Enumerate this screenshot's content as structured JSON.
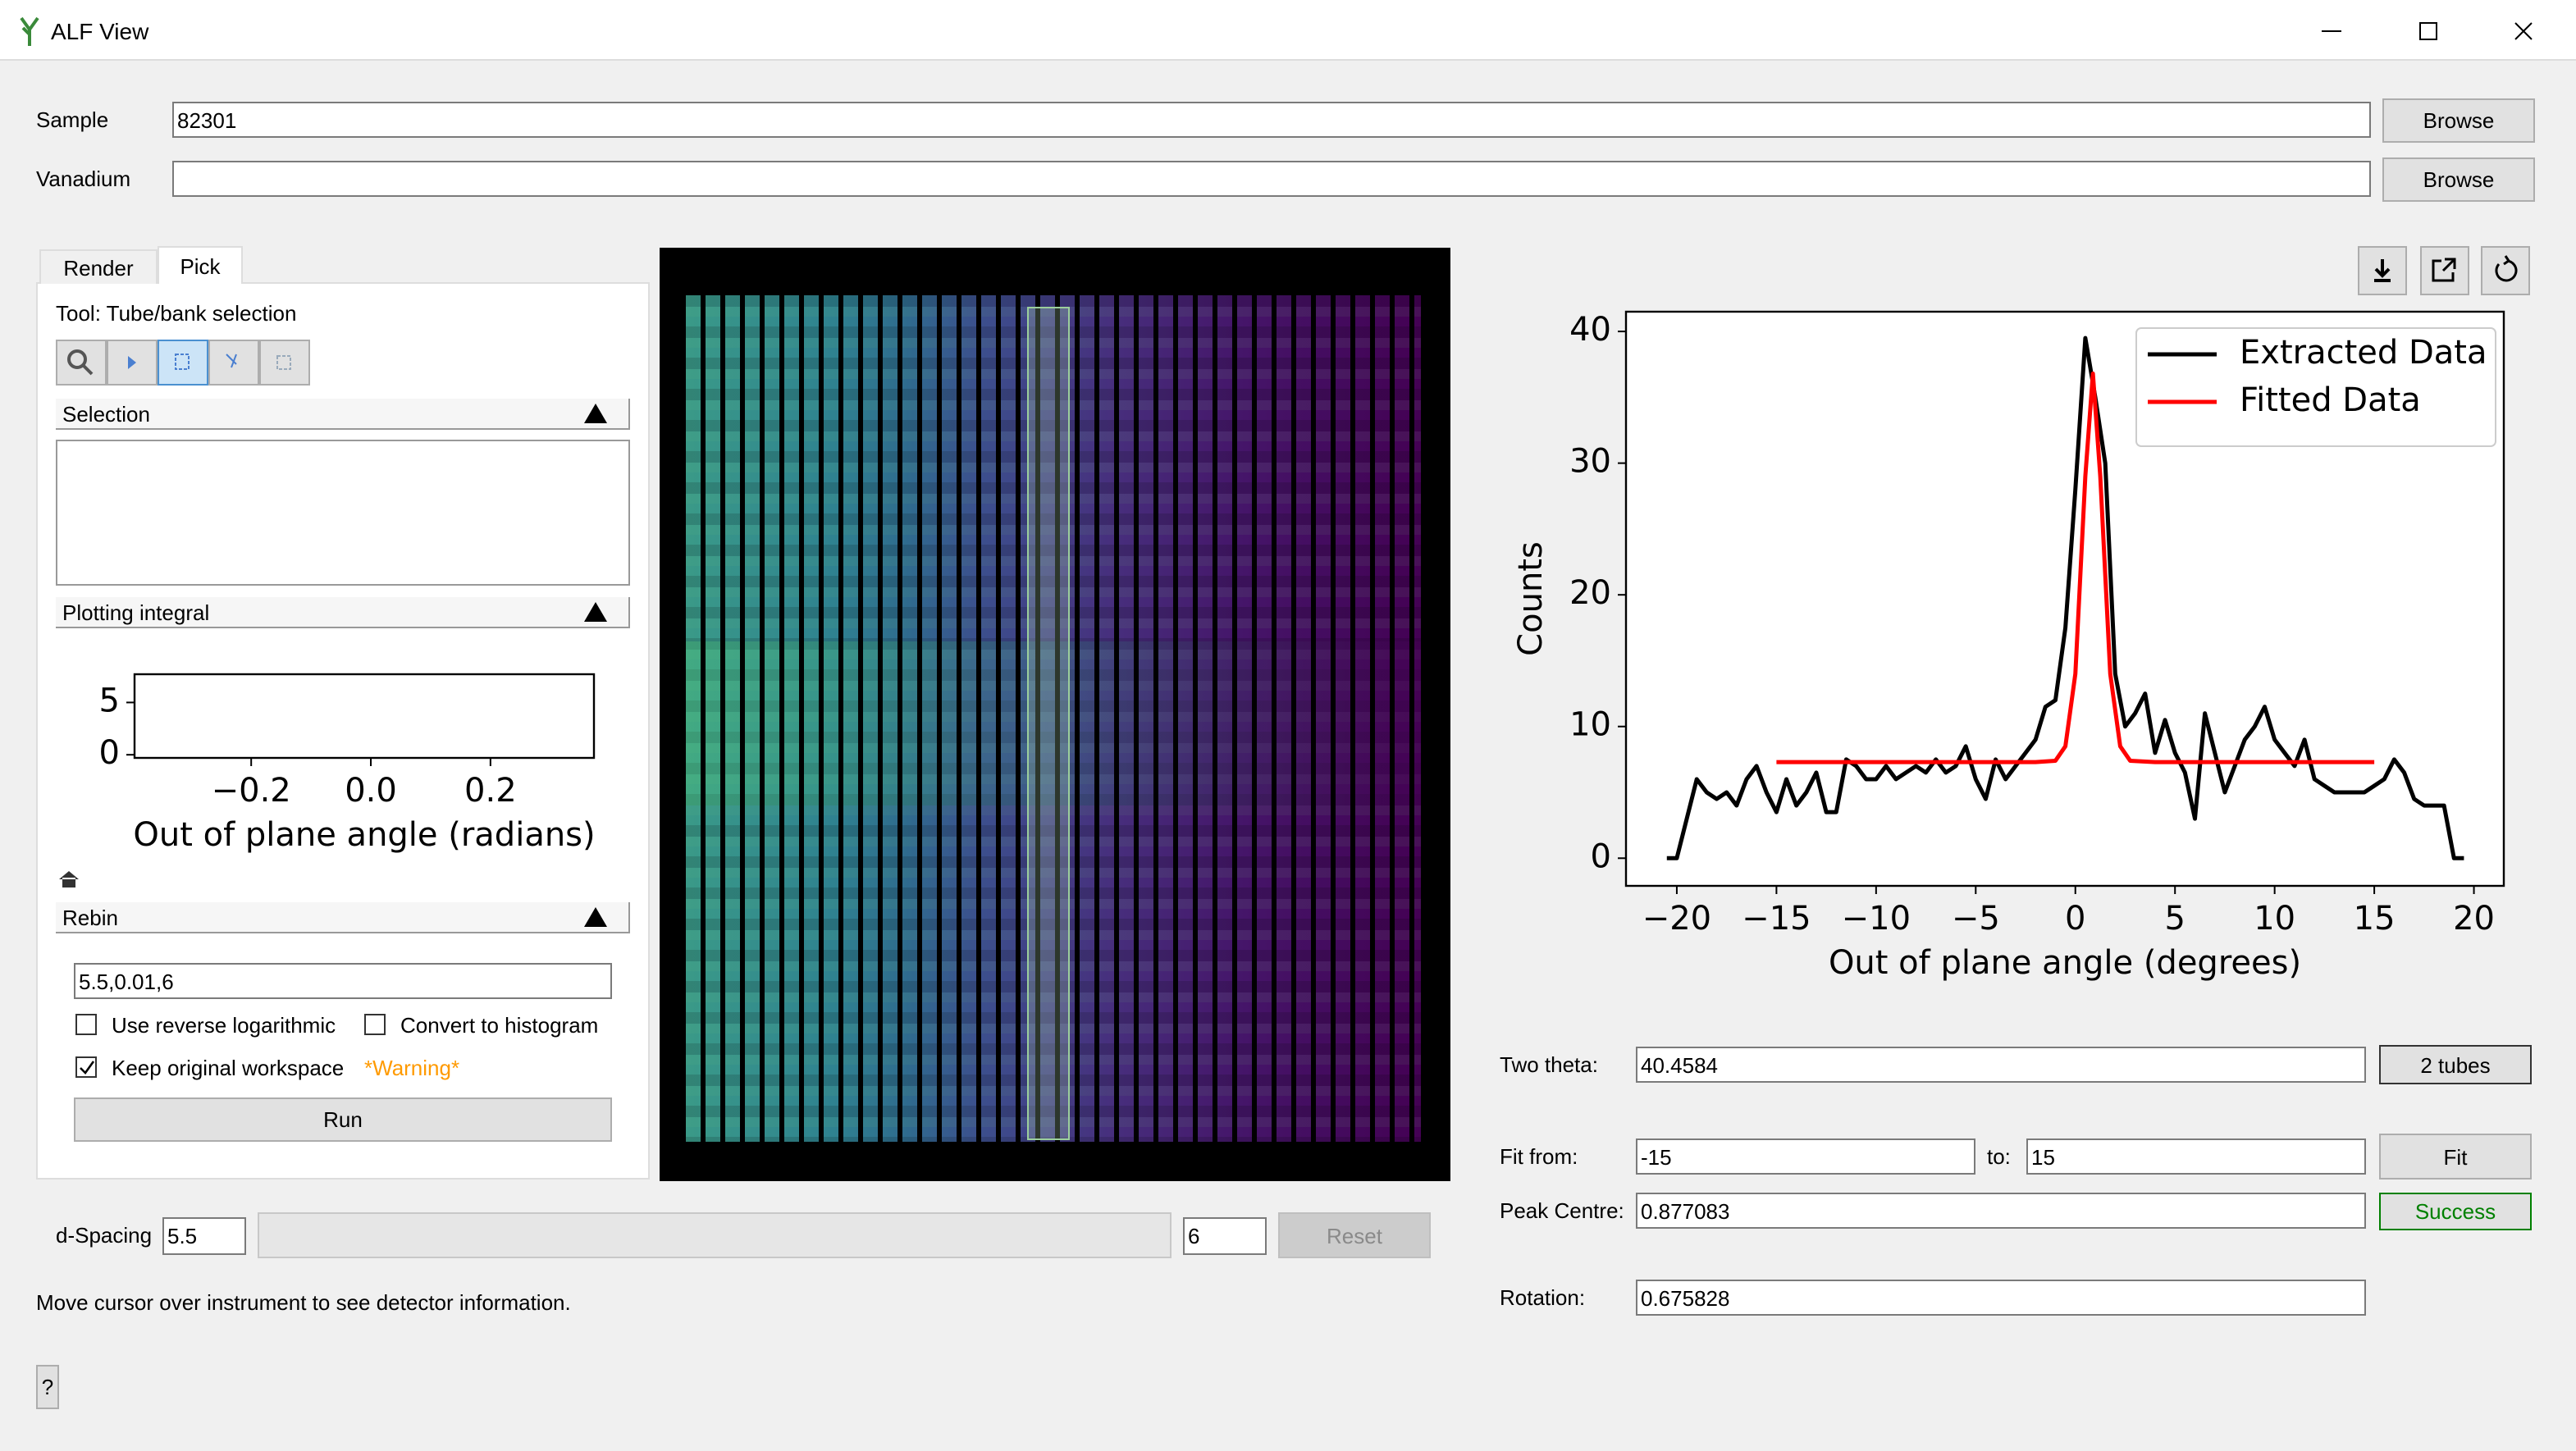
{
  "window": {
    "title": "ALF View"
  },
  "sample": {
    "label": "Sample",
    "value": "82301",
    "button": "Browse"
  },
  "vanadium": {
    "label": "Vanadium",
    "button": "Browse"
  },
  "tabs": [
    "Render",
    "Pick"
  ],
  "pick": {
    "tool": "Tool: Tube/bank selection",
    "sections": [
      "Selection",
      "Plotting integral",
      "Rebin"
    ]
  },
  "rebin": {
    "params": "5.5,0.01,6",
    "reverse_log": "Use reverse logarithmic",
    "convert": "Convert to histogram",
    "keep": "Keep original workspace",
    "warning": "*Warning*",
    "run": "Run"
  },
  "dspacing": {
    "label": "d-Spacing",
    "min": "5.5",
    "max": "6",
    "reset": "Reset"
  },
  "status": "Move cursor over instrument to see detector information.",
  "help": "?",
  "fit": {
    "two_theta_label": "Two theta:",
    "two_theta": "40.4584",
    "tubes": "2 tubes",
    "fit_from_label": "Fit from:",
    "fit_from": "-15",
    "to_label": "to:",
    "to": "15",
    "fit_button": "Fit",
    "peak_centre_label": "Peak Centre:",
    "peak_centre": "0.877083",
    "status": "Success",
    "rotation_label": "Rotation:",
    "rotation": "0.675828"
  },
  "chart_data": [
    {
      "type": "line",
      "xlabel": "Out of plane angle (degrees)",
      "ylabel": "Counts",
      "xlim": [
        -22.55,
        21.5
      ],
      "ylim": [
        -2.1,
        41.5
      ],
      "xticks": [
        {
          "value": -20,
          "label": "−20"
        },
        {
          "value": -15,
          "label": "−15"
        },
        {
          "value": -10,
          "label": "−10"
        },
        {
          "value": -5,
          "label": "−5"
        },
        0,
        5,
        10,
        15,
        20
      ],
      "yticks": [
        0,
        10,
        20,
        30,
        40
      ],
      "legend": "upper right",
      "series": [
        {
          "name": "Extracted Data",
          "color": "#000000",
          "x": [
            -20.5,
            -20,
            -19.5,
            -19,
            -18.5,
            -18,
            -17.5,
            -17,
            -16.5,
            -16,
            -15.5,
            -15,
            -14.5,
            -14,
            -13.5,
            -13,
            -12.5,
            -12,
            -11.5,
            -11,
            -10.5,
            -10,
            -9.5,
            -9,
            -8.5,
            -8,
            -7.5,
            -7,
            -6.5,
            -6,
            -5.5,
            -5,
            -4.5,
            -4,
            -3.5,
            -3,
            -2.5,
            -2,
            -1.5,
            -1,
            -0.5,
            0,
            0.5,
            1,
            1.5,
            2,
            2.5,
            3,
            3.5,
            4,
            4.5,
            5,
            5.5,
            6,
            6.5,
            7,
            7.5,
            8,
            8.5,
            9,
            9.5,
            10,
            10.5,
            11,
            11.5,
            12,
            12.5,
            13,
            13.5,
            14,
            14.5,
            15,
            15.5,
            16,
            16.5,
            17,
            17.5,
            18,
            18.5,
            19,
            19.5
          ],
          "values": [
            0,
            0,
            3,
            6,
            5,
            4.5,
            5,
            4,
            6,
            7,
            5,
            3.5,
            6,
            4,
            5,
            6.5,
            3.5,
            3.5,
            7.5,
            7,
            6,
            6,
            7,
            6,
            6.5,
            7,
            6.5,
            7.5,
            6.5,
            7,
            8.5,
            6,
            4.5,
            7.5,
            6,
            7,
            8,
            9,
            11.5,
            12,
            17.5,
            28,
            39.5,
            35,
            30,
            14,
            10,
            11,
            12.5,
            8,
            10.5,
            8,
            6.5,
            3,
            11,
            8,
            5,
            7,
            9,
            10,
            11.5,
            9,
            8,
            7,
            9,
            6,
            5.5,
            5,
            5,
            5,
            5,
            5.5,
            6,
            7.5,
            6.5,
            4.5,
            4,
            4,
            4,
            0,
            0
          ]
        },
        {
          "name": "Fitted Data",
          "color": "#ff0000",
          "x": [
            -15,
            -2,
            -1,
            -0.5,
            0,
            0.5,
            0.88,
            1.25,
            1.75,
            2.25,
            2.75,
            4,
            15
          ],
          "values": [
            7.3,
            7.3,
            7.4,
            8.5,
            14,
            29,
            36.8,
            29,
            14,
            8.5,
            7.4,
            7.3,
            7.3
          ]
        }
      ]
    },
    {
      "type": "line",
      "xlabel": "Out of plane angle (radians)",
      "xlim": [
        -0.395,
        0.373
      ],
      "ylim": [
        -0.3,
        7.7
      ],
      "xticks": [
        {
          "value": -0.2,
          "label": "−0.2"
        },
        {
          "value": 0,
          "label": "0.0"
        },
        0.2
      ],
      "yticks": [
        0,
        5
      ]
    }
  ]
}
